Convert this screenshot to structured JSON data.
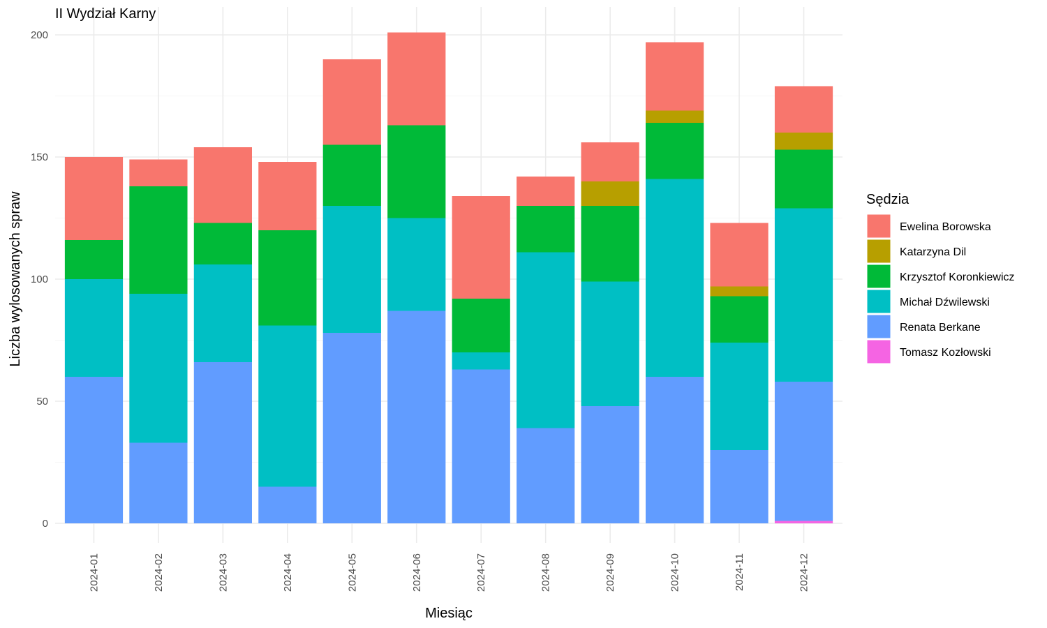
{
  "chart_data": {
    "type": "bar",
    "stacked": true,
    "title": "II Wydział Karny",
    "xlabel": "Miesiąc",
    "ylabel": "Liczba wylosowanych spraw",
    "ylim": [
      0,
      210
    ],
    "yticks": [
      0,
      50,
      100,
      150,
      200
    ],
    "grid": true,
    "legend_title": "Sędzia",
    "legend_position": "right",
    "categories": [
      "2024-01",
      "2024-02",
      "2024-03",
      "2024-04",
      "2024-05",
      "2024-06",
      "2024-07",
      "2024-08",
      "2024-09",
      "2024-10",
      "2024-11",
      "2024-12"
    ],
    "series": [
      {
        "name": "Tomasz Kozłowski",
        "color": "#F564E3",
        "values": [
          0,
          0,
          0,
          0,
          0,
          0,
          0,
          0,
          0,
          0,
          0,
          1
        ]
      },
      {
        "name": "Renata Berkane",
        "color": "#619CFF",
        "values": [
          60,
          33,
          66,
          15,
          78,
          87,
          63,
          39,
          48,
          60,
          30,
          57
        ]
      },
      {
        "name": "Michał Dźwilewski",
        "color": "#00BFC4",
        "values": [
          40,
          61,
          40,
          66,
          52,
          38,
          7,
          72,
          51,
          81,
          44,
          71
        ]
      },
      {
        "name": "Krzysztof Koronkiewicz",
        "color": "#00BA38",
        "values": [
          16,
          44,
          17,
          39,
          25,
          38,
          22,
          19,
          31,
          23,
          19,
          24
        ]
      },
      {
        "name": "Katarzyna Dil",
        "color": "#B79F00",
        "values": [
          0,
          0,
          0,
          0,
          0,
          0,
          0,
          0,
          10,
          5,
          4,
          7
        ]
      },
      {
        "name": "Ewelina Borowska",
        "color": "#F8766D",
        "values": [
          34,
          11,
          31,
          28,
          35,
          38,
          42,
          12,
          16,
          28,
          26,
          19
        ]
      }
    ],
    "legend_order": [
      "Ewelina Borowska",
      "Katarzyna Dil",
      "Krzysztof Koronkiewicz",
      "Michał Dźwilewski",
      "Renata Berkane",
      "Tomasz Kozłowski"
    ]
  }
}
